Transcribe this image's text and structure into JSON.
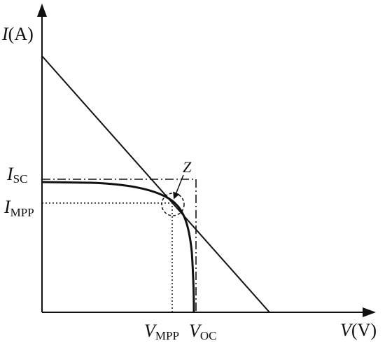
{
  "diagram": {
    "y_axis": {
      "var": "I",
      "unit": "(A)"
    },
    "x_axis": {
      "var": "V",
      "unit": "(V)"
    },
    "labels": {
      "isc": {
        "main": "I",
        "sub": "SC"
      },
      "impp": {
        "main": "I",
        "sub": "MPP"
      },
      "vmpp": {
        "main": "V",
        "sub": "MPP"
      },
      "voc": {
        "main": "V",
        "sub": "OC"
      },
      "z": "Z"
    }
  }
}
